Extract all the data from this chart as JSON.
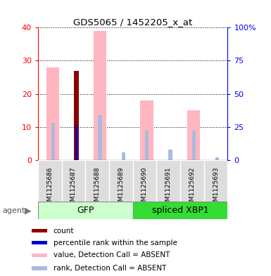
{
  "title": "GDS5065 / 1452205_x_at",
  "samples": [
    "GSM1125686",
    "GSM1125687",
    "GSM1125688",
    "GSM1125689",
    "GSM1125690",
    "GSM1125691",
    "GSM1125692",
    "GSM1125693"
  ],
  "groups": [
    "GFP",
    "GFP",
    "GFP",
    "GFP",
    "spliced XBP1",
    "spliced XBP1",
    "spliced XBP1",
    "spliced XBP1"
  ],
  "value_absent": [
    28,
    0,
    39,
    0,
    18,
    0,
    15,
    0
  ],
  "count": [
    0,
    27,
    0,
    0,
    0,
    0,
    0,
    0
  ],
  "percentile_rank_right": [
    0,
    26,
    0,
    0,
    0,
    0,
    0,
    0
  ],
  "rank_absent_right": [
    28,
    28,
    34,
    6,
    22,
    8,
    22,
    2
  ],
  "ylim_left": [
    0,
    40
  ],
  "ylim_right": [
    0,
    100
  ],
  "left_ticks": [
    0,
    10,
    20,
    30,
    40
  ],
  "right_ticks": [
    0,
    25,
    50,
    75,
    100
  ],
  "right_tick_labels": [
    "0",
    "25",
    "50",
    "75",
    "100%"
  ],
  "color_count": "#8B0000",
  "color_percentile": "#0000CD",
  "color_value_absent": "#FFB6C1",
  "color_rank_absent": "#AABBDD",
  "gfp_color_light": "#CCFFCC",
  "gfp_color_dark": "#33DD33",
  "agent_label": "agent",
  "legend_items": [
    {
      "label": "count",
      "color": "#8B0000"
    },
    {
      "label": "percentile rank within the sample",
      "color": "#0000CD"
    },
    {
      "label": "value, Detection Call = ABSENT",
      "color": "#FFB6C1"
    },
    {
      "label": "rank, Detection Call = ABSENT",
      "color": "#AABBDD"
    }
  ]
}
